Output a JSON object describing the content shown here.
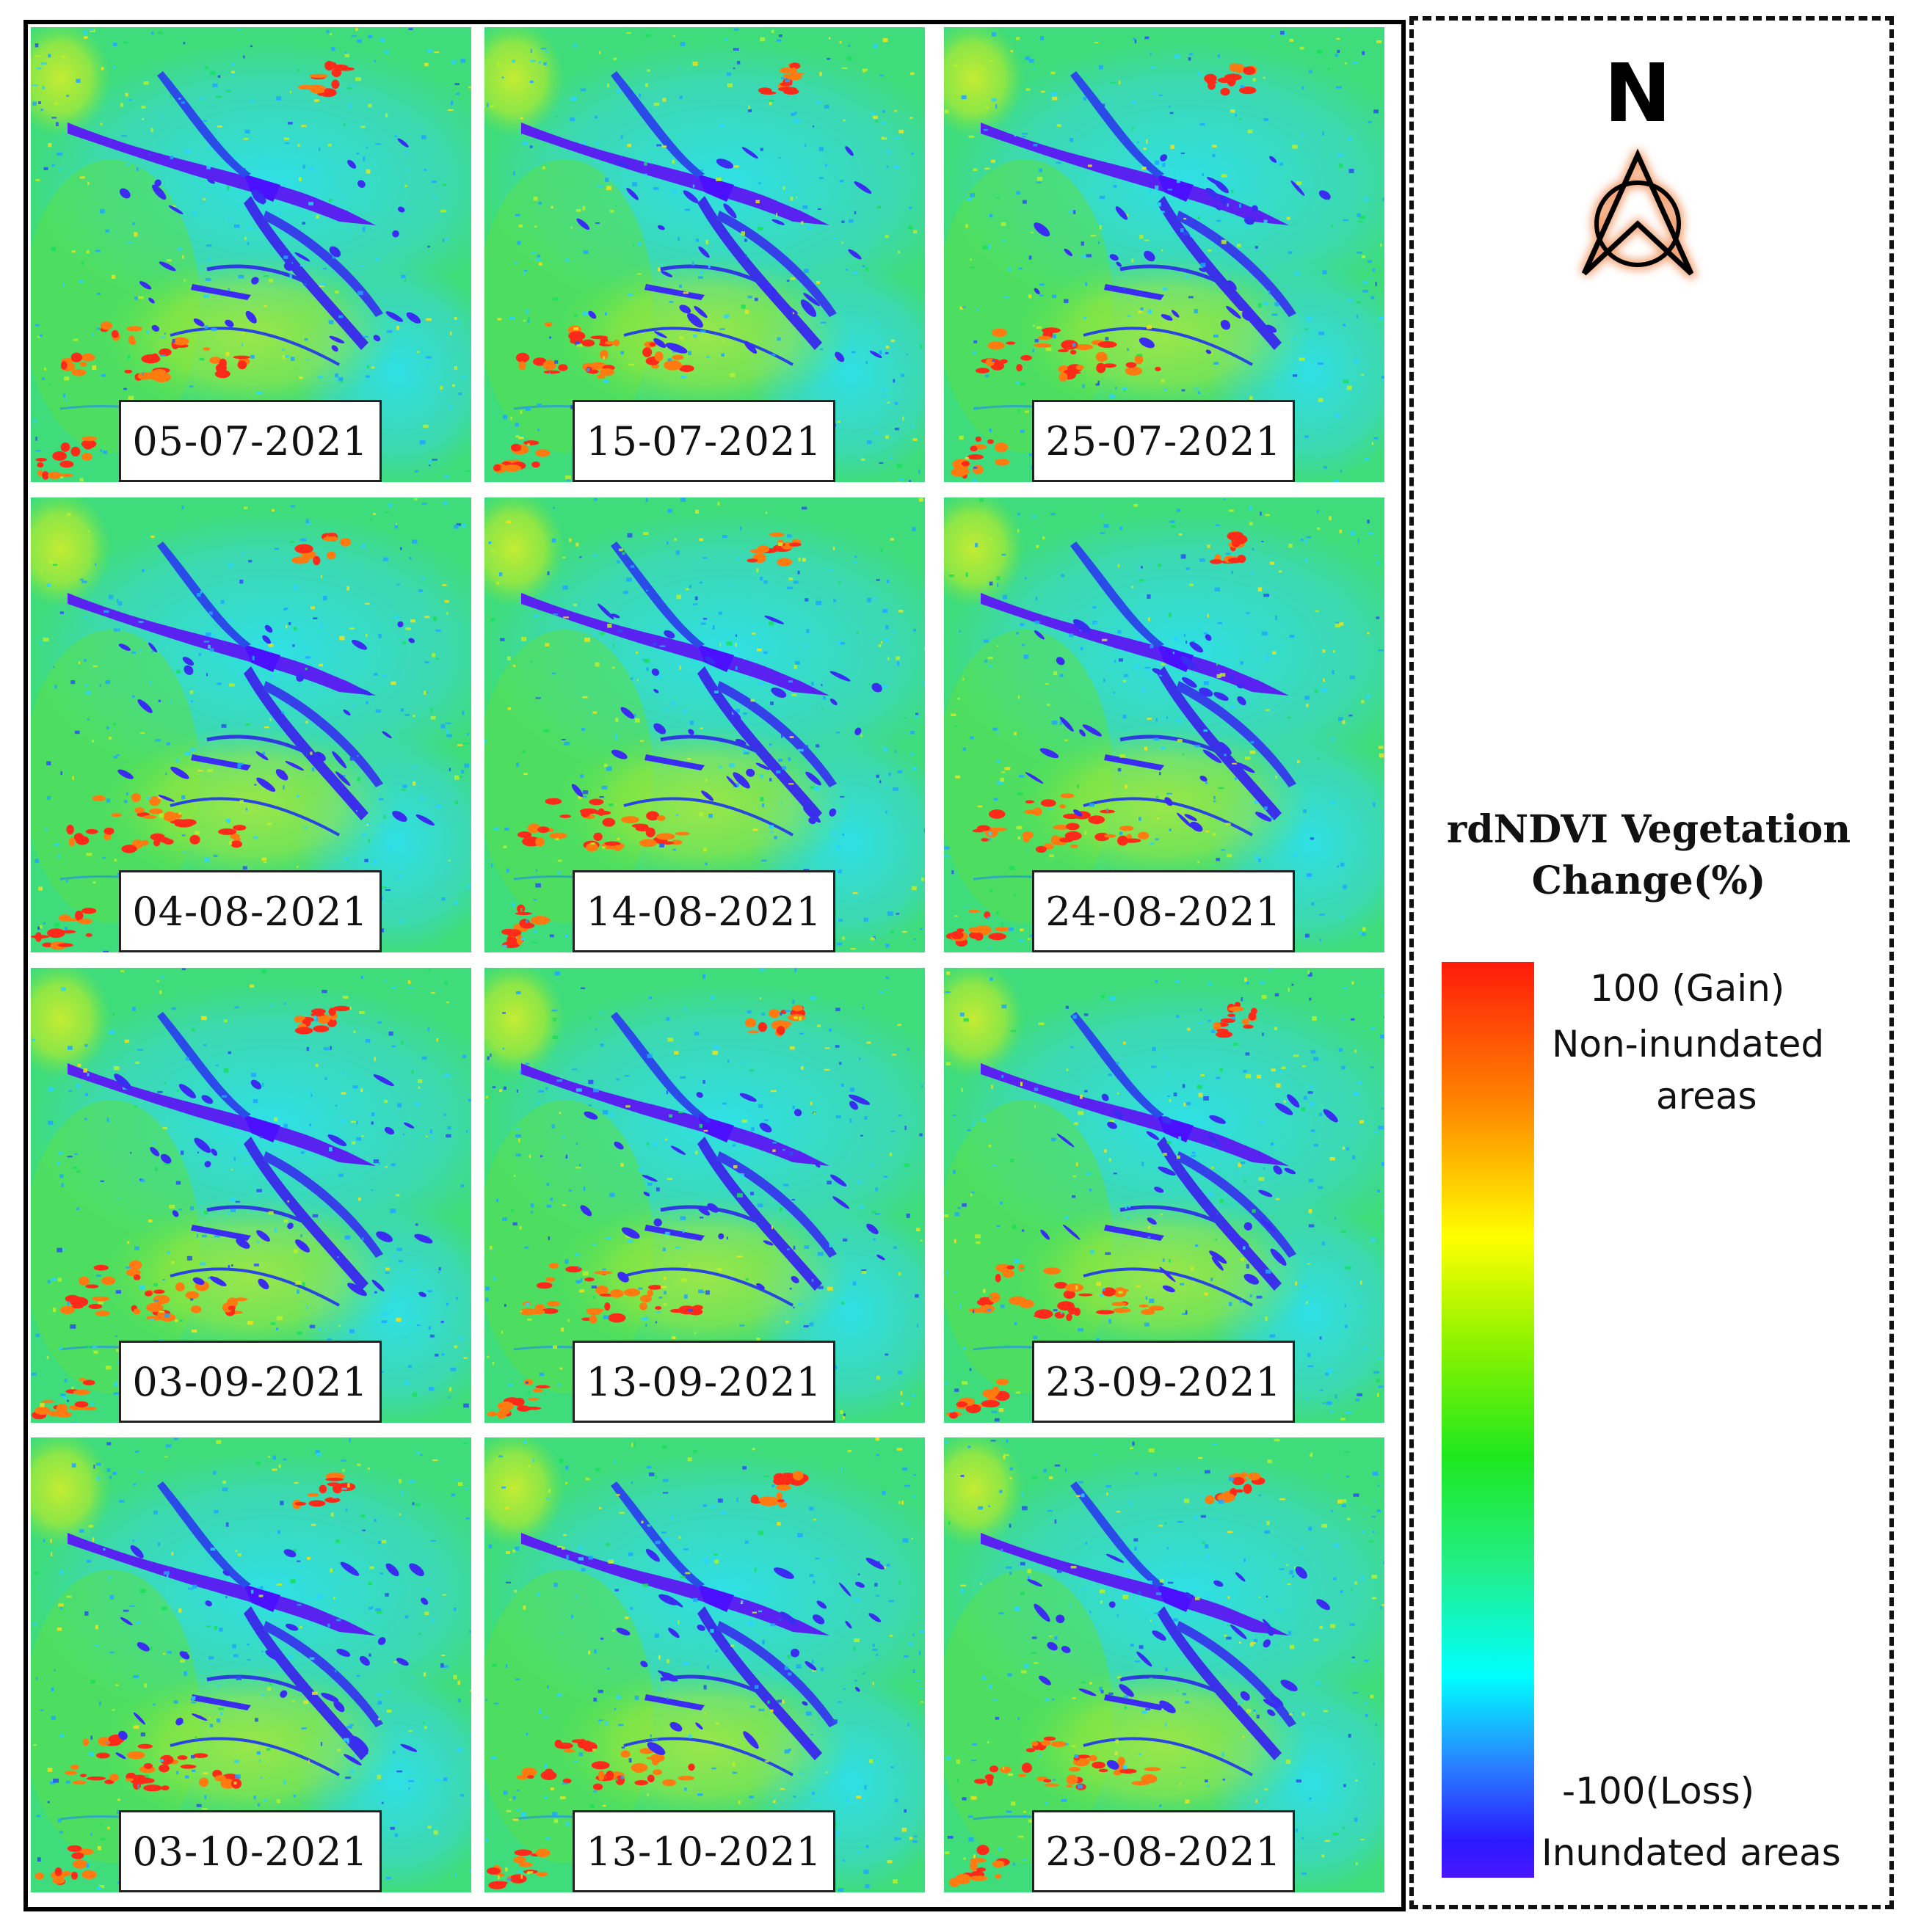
{
  "panels": [
    {
      "date": "05-07-2021"
    },
    {
      "date": "15-07-2021"
    },
    {
      "date": "25-07-2021"
    },
    {
      "date": "04-08-2021"
    },
    {
      "date": "14-08-2021"
    },
    {
      "date": "24-08-2021"
    },
    {
      "date": "03-09-2021"
    },
    {
      "date": "13-09-2021"
    },
    {
      "date": "23-09-2021"
    },
    {
      "date": "03-10-2021"
    },
    {
      "date": "13-10-2021"
    },
    {
      "date": "23-08-2021"
    }
  ],
  "north_arrow": {
    "label": "N"
  },
  "legend": {
    "title_line1": "rdNDVI Vegetation",
    "title_line2": "Change(%)",
    "max_label": "100  (Gain)",
    "max_desc_line1": "Non-inundated",
    "max_desc_line2": "areas",
    "min_label": "-100(Loss)",
    "min_desc": "Inundated areas",
    "max_value": 100,
    "min_value": -100,
    "colors": [
      "#ff1a0a",
      "#ff8a00",
      "#ffff00",
      "#1fe81f",
      "#00ffff",
      "#2a1aff"
    ]
  }
}
